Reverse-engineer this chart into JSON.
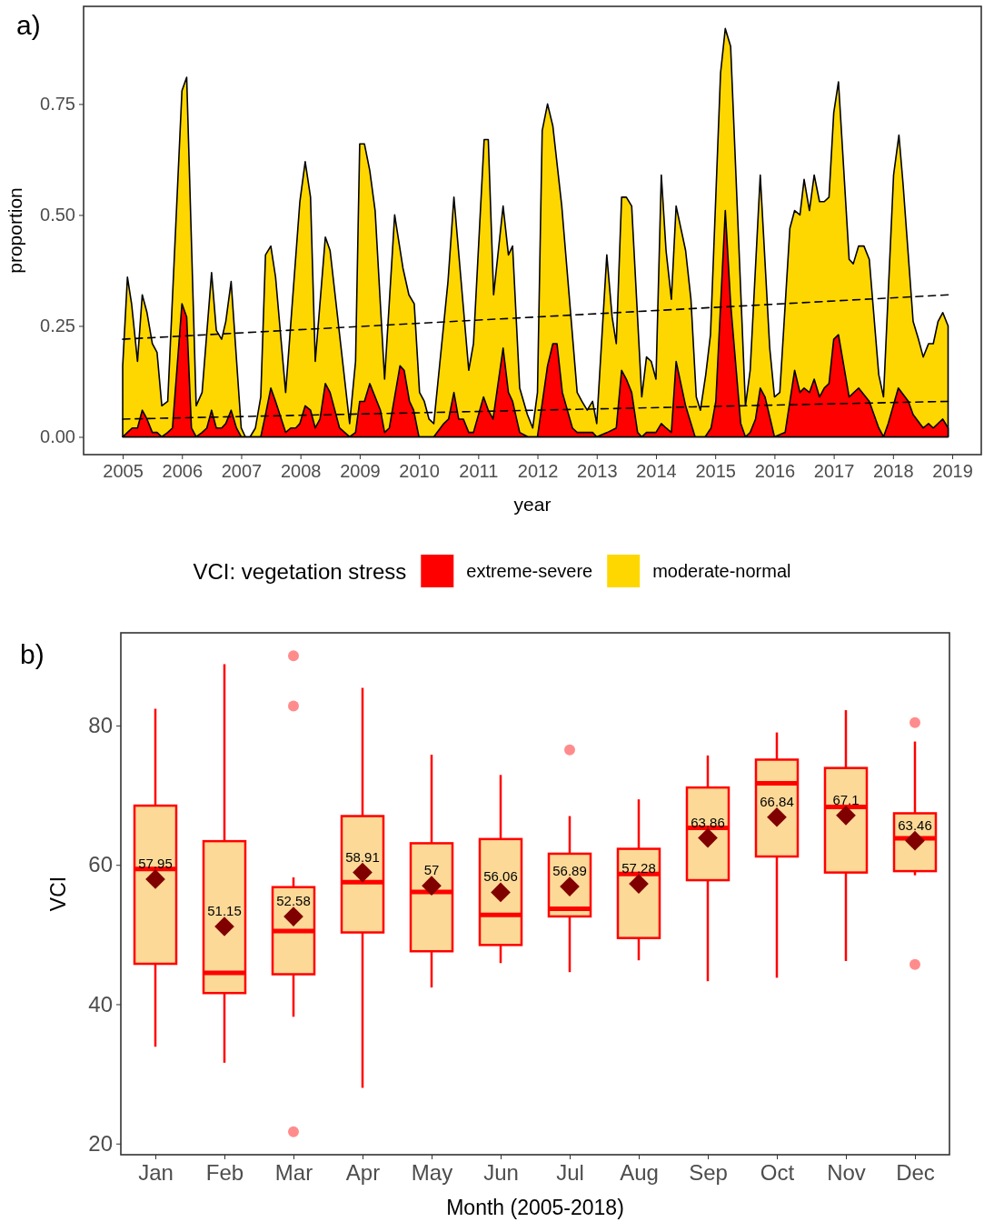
{
  "chart_data": [
    {
      "type": "area",
      "xlabel": "year",
      "ylabel": "proportion",
      "legend_title": "VCI: vegetation stress",
      "legend": "bottom",
      "grid": false,
      "annotations": [
        "a)"
      ],
      "xlim": [
        2004.34,
        2019.49
      ],
      "xticks": [
        2005,
        2006,
        2007,
        2008,
        2009,
        2010,
        2011,
        2012,
        2013,
        2014,
        2015,
        2016,
        2017,
        2018,
        2019
      ],
      "ylim": [
        -0.04,
        0.97
      ],
      "yticks": [
        {
          "value": 0,
          "label": "0.00"
        },
        {
          "value": 0.25,
          "label": "0.25"
        },
        {
          "value": 0.5,
          "label": "0.50"
        },
        {
          "value": 0.75,
          "label": "0.75"
        }
      ],
      "series": [
        {
          "name": "extreme-severe",
          "color": "#ff0000",
          "x": [
            2005.0,
            2005.08,
            2005.16,
            2005.25,
            2005.33,
            2005.41,
            2005.5,
            2005.58,
            2005.66,
            2005.76,
            2005.84,
            2006.0,
            2006.08,
            2006.16,
            2006.24,
            2006.34,
            2006.42,
            2006.5,
            2006.58,
            2006.67,
            2006.74,
            2006.83,
            2006.92,
            2007.0,
            2007.07,
            2007.15,
            2007.24,
            2007.33,
            2007.41,
            2007.5,
            2007.58,
            2007.75,
            2007.84,
            2007.92,
            2007.99,
            2008.08,
            2008.17,
            2008.25,
            2008.33,
            2008.42,
            2008.5,
            2008.66,
            2008.83,
            2008.93,
            2009.0,
            2009.08,
            2009.17,
            2009.35,
            2009.42,
            2009.5,
            2009.68,
            2009.75,
            2009.84,
            2009.91,
            2010.0,
            2010.17,
            2010.25,
            2010.42,
            2010.5,
            2010.59,
            2010.67,
            2010.75,
            2010.84,
            2010.92,
            2011.09,
            2011.17,
            2011.25,
            2011.42,
            2011.51,
            2011.58,
            2011.7,
            2011.84,
            2012.0,
            2012.17,
            2012.26,
            2012.33,
            2012.42,
            2012.59,
            2012.67,
            2012.84,
            2012.93,
            2013.0,
            2013.18,
            2013.33,
            2013.42,
            2013.5,
            2013.59,
            2013.69,
            2013.76,
            2013.84,
            2014.0,
            2014.09,
            2014.17,
            2014.26,
            2014.34,
            2014.5,
            2014.66,
            2014.83,
            2014.93,
            2015.01,
            2015.17,
            2015.26,
            2015.43,
            2015.51,
            2015.59,
            2015.68,
            2015.76,
            2015.84,
            2016.0,
            2016.18,
            2016.34,
            2016.43,
            2016.5,
            2016.59,
            2016.67,
            2016.76,
            2016.84,
            2016.92,
            2017.0,
            2017.08,
            2017.26,
            2017.42,
            2017.6,
            2017.76,
            2017.84,
            2017.92,
            2018.09,
            2018.26,
            2018.34,
            2018.51,
            2018.6,
            2018.68,
            2018.84,
            2018.93
          ],
          "values": [
            0.0,
            0.01,
            0.02,
            0.02,
            0.06,
            0.04,
            0.01,
            0.01,
            0.0,
            0.01,
            0.02,
            0.3,
            0.27,
            0.02,
            0.0,
            0.01,
            0.02,
            0.06,
            0.02,
            0.02,
            0.03,
            0.06,
            0.02,
            0.0,
            0.0,
            0.0,
            0.0,
            0.0,
            0.05,
            0.11,
            0.08,
            0.01,
            0.02,
            0.02,
            0.03,
            0.07,
            0.06,
            0.02,
            0.04,
            0.12,
            0.1,
            0.02,
            0.0,
            0.01,
            0.08,
            0.08,
            0.12,
            0.06,
            0.01,
            0.02,
            0.16,
            0.15,
            0.08,
            0.06,
            0.0,
            0.0,
            0.0,
            0.03,
            0.04,
            0.1,
            0.04,
            0.04,
            0.01,
            0.01,
            0.09,
            0.06,
            0.04,
            0.2,
            0.1,
            0.08,
            0.01,
            0.0,
            0.0,
            0.16,
            0.21,
            0.21,
            0.1,
            0.02,
            0.01,
            0.01,
            0.01,
            0.0,
            0.01,
            0.02,
            0.15,
            0.13,
            0.1,
            0.01,
            0.0,
            0.01,
            0.01,
            0.03,
            0.02,
            0.01,
            0.17,
            0.07,
            0.0,
            0.0,
            0.02,
            0.08,
            0.51,
            0.3,
            0.03,
            0.0,
            0.01,
            0.04,
            0.11,
            0.09,
            0.0,
            0.01,
            0.15,
            0.1,
            0.11,
            0.1,
            0.13,
            0.09,
            0.11,
            0.12,
            0.22,
            0.23,
            0.09,
            0.11,
            0.08,
            0.02,
            0.0,
            0.03,
            0.11,
            0.08,
            0.05,
            0.02,
            0.03,
            0.02,
            0.04,
            0.02
          ]
        },
        {
          "name": "moderate-normal",
          "color": "#ffd700",
          "x": [
            2005.0,
            2005.08,
            2005.15,
            2005.25,
            2005.33,
            2005.41,
            2005.5,
            2005.58,
            2005.66,
            2005.76,
            2006.0,
            2006.08,
            2006.24,
            2006.34,
            2006.5,
            2006.58,
            2006.67,
            2006.74,
            2006.83,
            2007.0,
            2007.07,
            2007.15,
            2007.24,
            2007.33,
            2007.41,
            2007.5,
            2007.58,
            2007.75,
            2007.99,
            2008.08,
            2008.17,
            2008.25,
            2008.42,
            2008.5,
            2008.83,
            2008.93,
            2009.0,
            2009.08,
            2009.17,
            2009.26,
            2009.42,
            2009.59,
            2009.73,
            2009.83,
            2009.92,
            2010.01,
            2010.09,
            2010.17,
            2010.25,
            2010.34,
            2010.49,
            2010.59,
            2010.84,
            2010.92,
            2011.1,
            2011.17,
            2011.26,
            2011.42,
            2011.51,
            2011.58,
            2011.7,
            2011.83,
            2011.92,
            2012.0,
            2012.08,
            2012.17,
            2012.26,
            2012.41,
            2012.67,
            2012.75,
            2012.84,
            2012.93,
            2013.0,
            2013.17,
            2013.26,
            2013.33,
            2013.42,
            2013.5,
            2013.59,
            2013.76,
            2013.84,
            2013.92,
            2014.0,
            2014.09,
            2014.17,
            2014.26,
            2014.34,
            2014.5,
            2014.59,
            2014.68,
            2014.75,
            2014.84,
            2014.92,
            2015.09,
            2015.17,
            2015.26,
            2015.51,
            2015.59,
            2015.76,
            2015.92,
            2016.0,
            2016.09,
            2016.26,
            2016.34,
            2016.43,
            2016.5,
            2016.59,
            2016.67,
            2016.76,
            2016.84,
            2016.92,
            2017.0,
            2017.08,
            2017.26,
            2017.33,
            2017.42,
            2017.51,
            2017.6,
            2017.76,
            2017.84,
            2018.01,
            2018.1,
            2018.17,
            2018.34,
            2018.43,
            2018.51,
            2018.6,
            2018.68,
            2018.76,
            2018.84,
            2018.93
          ],
          "values": [
            0.16,
            0.36,
            0.3,
            0.17,
            0.32,
            0.28,
            0.21,
            0.19,
            0.07,
            0.08,
            0.78,
            0.81,
            0.07,
            0.1,
            0.37,
            0.24,
            0.22,
            0.26,
            0.35,
            0.02,
            0.0,
            0.0,
            0.02,
            0.09,
            0.41,
            0.43,
            0.36,
            0.1,
            0.53,
            0.62,
            0.54,
            0.17,
            0.45,
            0.42,
            0.03,
            0.17,
            0.66,
            0.66,
            0.6,
            0.51,
            0.13,
            0.5,
            0.38,
            0.32,
            0.3,
            0.1,
            0.08,
            0.04,
            0.03,
            0.15,
            0.35,
            0.54,
            0.15,
            0.21,
            0.67,
            0.67,
            0.32,
            0.52,
            0.41,
            0.43,
            0.11,
            0.05,
            0.02,
            0.1,
            0.69,
            0.75,
            0.7,
            0.52,
            0.1,
            0.08,
            0.06,
            0.08,
            0.03,
            0.41,
            0.27,
            0.21,
            0.54,
            0.54,
            0.52,
            0.09,
            0.18,
            0.17,
            0.13,
            0.59,
            0.42,
            0.31,
            0.52,
            0.42,
            0.31,
            0.09,
            0.06,
            0.14,
            0.23,
            0.82,
            0.92,
            0.88,
            0.07,
            0.15,
            0.59,
            0.2,
            0.09,
            0.1,
            0.47,
            0.51,
            0.5,
            0.58,
            0.51,
            0.59,
            0.53,
            0.53,
            0.54,
            0.73,
            0.8,
            0.4,
            0.39,
            0.43,
            0.43,
            0.4,
            0.14,
            0.09,
            0.59,
            0.68,
            0.57,
            0.26,
            0.22,
            0.18,
            0.21,
            0.21,
            0.26,
            0.28,
            0.25
          ]
        },
        {
          "type": "line",
          "color": "#000000",
          "line_style": "dashed",
          "x": [
            2005.0,
            2018.93
          ],
          "values": [
            0.22,
            0.32
          ]
        },
        {
          "type": "line",
          "color": "#000000",
          "line_style": "dashed",
          "x": [
            2005.0,
            2018.93
          ],
          "values": [
            0.04,
            0.08
          ]
        }
      ]
    },
    {
      "type": "box",
      "xlabel": "Month (2005-2018)",
      "ylabel": "VCI",
      "grid": false,
      "annotations": [
        "b)"
      ],
      "categories": [
        "Jan",
        "Feb",
        "Mar",
        "Apr",
        "May",
        "Jun",
        "Jul",
        "Aug",
        "Sep",
        "Oct",
        "Nov",
        "Dec"
      ],
      "ylim": [
        18.4,
        93.3
      ],
      "yticks": [
        20,
        40,
        60,
        80
      ],
      "series": [
        {
          "color": "#ff0000",
          "value_labels": [
            "57.95",
            "51.15",
            "52.58",
            "58.91",
            "57",
            "56.06",
            "56.89",
            "57.28",
            "63.86",
            "66.84",
            "67.1",
            "63.46"
          ],
          "boxes": [
            {
              "low": 33.9,
              "q1": 45.8,
              "median": 59.4,
              "q3": 68.5,
              "high": 82.4,
              "mean": 57.95
            },
            {
              "low": 31.6,
              "q1": 41.6,
              "median": 44.5,
              "q3": 63.4,
              "high": 88.8,
              "mean": 51.15
            },
            {
              "low": 38.2,
              "q1": 44.3,
              "median": 50.5,
              "q3": 56.8,
              "high": 58.2,
              "mean": 52.58,
              "outliers": [
                90.0,
                82.8,
                21.7
              ]
            },
            {
              "low": 28.0,
              "q1": 50.3,
              "median": 57.5,
              "q3": 67.0,
              "high": 85.4,
              "mean": 58.91
            },
            {
              "low": 42.4,
              "q1": 47.6,
              "median": 56.1,
              "q3": 63.1,
              "high": 75.8,
              "mean": 57
            },
            {
              "low": 45.9,
              "q1": 48.5,
              "median": 52.8,
              "q3": 63.7,
              "high": 72.9,
              "mean": 56.06
            },
            {
              "low": 44.6,
              "q1": 52.6,
              "median": 53.7,
              "q3": 61.6,
              "high": 67.0,
              "mean": 56.89,
              "outliers": [
                76.5
              ]
            },
            {
              "low": 46.3,
              "q1": 49.5,
              "median": 58.7,
              "q3": 62.3,
              "high": 69.4,
              "mean": 57.28
            },
            {
              "low": 43.3,
              "q1": 57.8,
              "median": 65.3,
              "q3": 71.1,
              "high": 75.7,
              "mean": 63.86
            },
            {
              "low": 43.8,
              "q1": 61.2,
              "median": 71.7,
              "q3": 75.1,
              "high": 79.0,
              "mean": 66.84
            },
            {
              "low": 46.2,
              "q1": 58.9,
              "median": 68.3,
              "q3": 73.9,
              "high": 82.2,
              "mean": 67.1
            },
            {
              "low": 58.5,
              "q1": 59.1,
              "median": 63.8,
              "q3": 67.4,
              "high": 77.7,
              "mean": 63.46,
              "outliers": [
                80.4,
                45.7
              ]
            }
          ]
        }
      ]
    }
  ]
}
